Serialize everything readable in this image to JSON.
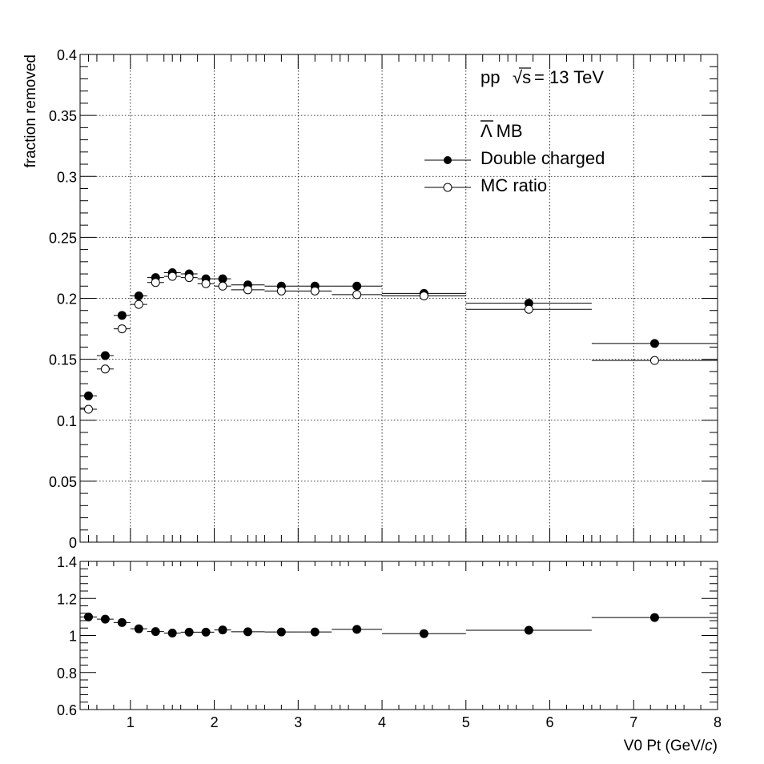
{
  "chart_data": [
    {
      "type": "scatter",
      "panel": "top",
      "xlim": [
        0.4,
        8
      ],
      "ylim": [
        0,
        0.4
      ],
      "ylabel": "fraction removed",
      "grid": true,
      "x_ticks": [
        1,
        2,
        3,
        4,
        5,
        6,
        7,
        8
      ],
      "y_ticks": [
        0,
        0.05,
        0.1,
        0.15,
        0.2,
        0.25,
        0.3,
        0.35,
        0.4
      ],
      "y_tick_labels": [
        "0",
        "0.05",
        "0.1",
        "0.15",
        "0.2",
        "0.25",
        "0.3",
        "0.35",
        "0.4"
      ],
      "annotation": {
        "system": "pp",
        "energy": "= 13 TeV",
        "sqrt_symbol": "√s",
        "particle": "Λ MB"
      },
      "legend_position": "top-right",
      "bins": [
        {
          "lo": 0.4,
          "hi": 0.6
        },
        {
          "lo": 0.6,
          "hi": 0.8
        },
        {
          "lo": 0.8,
          "hi": 1.0
        },
        {
          "lo": 1.0,
          "hi": 1.2
        },
        {
          "lo": 1.2,
          "hi": 1.4
        },
        {
          "lo": 1.4,
          "hi": 1.6
        },
        {
          "lo": 1.6,
          "hi": 1.8
        },
        {
          "lo": 1.8,
          "hi": 2.0
        },
        {
          "lo": 2.0,
          "hi": 2.2
        },
        {
          "lo": 2.2,
          "hi": 2.6
        },
        {
          "lo": 2.6,
          "hi": 3.0
        },
        {
          "lo": 3.0,
          "hi": 3.4
        },
        {
          "lo": 3.4,
          "hi": 4.0
        },
        {
          "lo": 4.0,
          "hi": 5.0
        },
        {
          "lo": 5.0,
          "hi": 6.5
        },
        {
          "lo": 6.5,
          "hi": 8.0
        }
      ],
      "series": [
        {
          "name": "Double charged",
          "marker": "filled-circle",
          "values": [
            0.12,
            0.153,
            0.186,
            0.202,
            0.217,
            0.221,
            0.22,
            0.216,
            0.216,
            0.211,
            0.21,
            0.21,
            0.21,
            0.204,
            0.196,
            0.163
          ]
        },
        {
          "name": "MC ratio",
          "marker": "open-circle",
          "values": [
            0.109,
            0.142,
            0.175,
            0.195,
            0.213,
            0.218,
            0.217,
            0.212,
            0.21,
            0.207,
            0.206,
            0.206,
            0.203,
            0.202,
            0.191,
            0.149
          ]
        }
      ]
    },
    {
      "type": "scatter",
      "panel": "bottom",
      "xlim": [
        0.4,
        8
      ],
      "ylim": [
        0.6,
        1.4
      ],
      "xlabel_main": "V0 Pt (GeV/",
      "xlabel_italic": "c",
      "xlabel_close": ")",
      "x_ticks": [
        1,
        2,
        3,
        4,
        5,
        6,
        7,
        8
      ],
      "x_tick_labels": [
        "1",
        "2",
        "3",
        "4",
        "5",
        "6",
        "7",
        "8"
      ],
      "y_ticks": [
        0.6,
        0.8,
        1,
        1.2,
        1.4
      ],
      "y_tick_labels": [
        "0.6",
        "0.8",
        "1",
        "1.2",
        "1.4"
      ],
      "grid": false,
      "series": [
        {
          "marker": "filled-circle",
          "values": [
            1.1,
            1.088,
            1.07,
            1.036,
            1.021,
            1.013,
            1.018,
            1.018,
            1.03,
            1.02,
            1.019,
            1.019,
            1.033,
            1.01,
            1.028,
            1.097
          ]
        }
      ]
    }
  ]
}
